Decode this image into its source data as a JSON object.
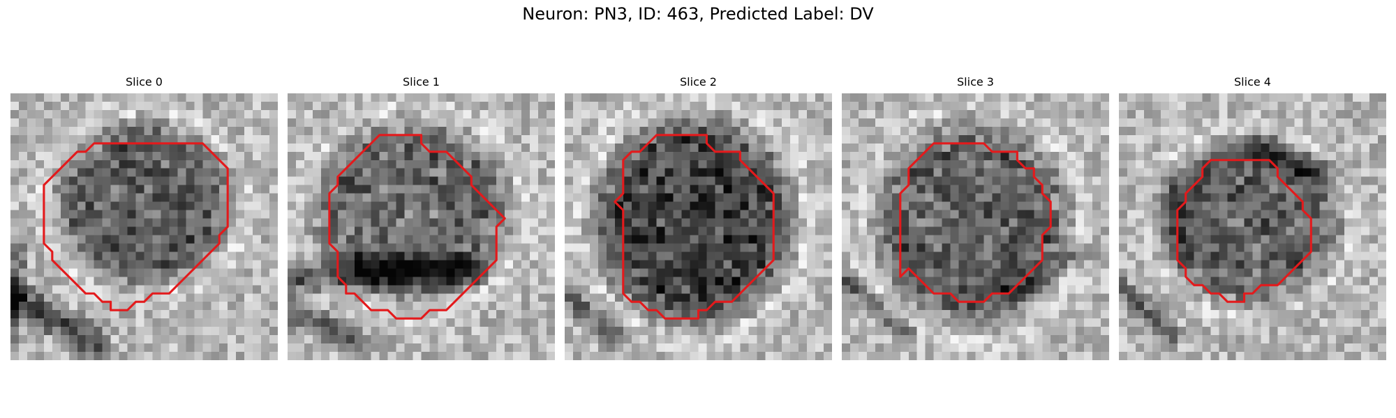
{
  "figure": {
    "title": "Neuron: PN3, ID: 463, Predicted Label: DV"
  },
  "outline_color": "#e31a1c",
  "panels": [
    {
      "title": "Slice 0",
      "seed": 11,
      "blob": {
        "cx": 16.0,
        "cy": 13.2,
        "rx": 9.4,
        "ry": 8.6,
        "dark": 0.62
      },
      "streaks": [
        {
          "x1": 0,
          "y1": 24,
          "x2": 10,
          "y2": 30,
          "w": 2.6,
          "dark": 0.85
        },
        {
          "x1": 1,
          "y1": 18,
          "x2": 0,
          "y2": 30,
          "w": 1.8,
          "dark": 0.55
        }
      ],
      "contour": [
        [
          11,
          6
        ],
        [
          23,
          6
        ],
        [
          24,
          7
        ],
        [
          25,
          8
        ],
        [
          26,
          9
        ],
        [
          26,
          10
        ],
        [
          26,
          11
        ],
        [
          26,
          12
        ],
        [
          26,
          13
        ],
        [
          26,
          14
        ],
        [
          26,
          15
        ],
        [
          26,
          16
        ],
        [
          25,
          17
        ],
        [
          25,
          18
        ],
        [
          24,
          19
        ],
        [
          23,
          20
        ],
        [
          22,
          21
        ],
        [
          21,
          22
        ],
        [
          20,
          23
        ],
        [
          19,
          24
        ],
        [
          17,
          24
        ],
        [
          16,
          25
        ],
        [
          15,
          25
        ],
        [
          14,
          26
        ],
        [
          12,
          26
        ],
        [
          12,
          25
        ],
        [
          11,
          25
        ],
        [
          10,
          24
        ],
        [
          9,
          24
        ],
        [
          8,
          23
        ],
        [
          7,
          22
        ],
        [
          6,
          21
        ],
        [
          5,
          20
        ],
        [
          5,
          19
        ],
        [
          4,
          18
        ],
        [
          4,
          17
        ],
        [
          4,
          16
        ],
        [
          4,
          15
        ],
        [
          4,
          14
        ],
        [
          4,
          13
        ],
        [
          4,
          12
        ],
        [
          4,
          11
        ],
        [
          5,
          10
        ],
        [
          6,
          9
        ],
        [
          7,
          8
        ],
        [
          8,
          7
        ],
        [
          9,
          7
        ],
        [
          10,
          6
        ]
      ]
    },
    {
      "title": "Slice 1",
      "seed": 23,
      "blob": {
        "cx": 15.0,
        "cy": 14.2,
        "rx": 10.5,
        "ry": 9.6,
        "dark": 0.55
      },
      "streaks": [
        {
          "x1": 1,
          "y1": 22,
          "x2": 22,
          "y2": 21,
          "w": 2.8,
          "dark": 0.8
        },
        {
          "x1": 0,
          "y1": 26,
          "x2": 8,
          "y2": 30,
          "w": 2.2,
          "dark": 0.7
        }
      ],
      "contour": [
        [
          11,
          5
        ],
        [
          15,
          5
        ],
        [
          16,
          5
        ],
        [
          16,
          6
        ],
        [
          17,
          7
        ],
        [
          19,
          7
        ],
        [
          20,
          8
        ],
        [
          21,
          9
        ],
        [
          22,
          10
        ],
        [
          22,
          11
        ],
        [
          23,
          12
        ],
        [
          24,
          13
        ],
        [
          25,
          14
        ],
        [
          26,
          15
        ],
        [
          25,
          16
        ],
        [
          25,
          17
        ],
        [
          25,
          18
        ],
        [
          25,
          19
        ],
        [
          25,
          20
        ],
        [
          24,
          21
        ],
        [
          23,
          22
        ],
        [
          22,
          23
        ],
        [
          21,
          24
        ],
        [
          20,
          25
        ],
        [
          19,
          26
        ],
        [
          18,
          26
        ],
        [
          17,
          26
        ],
        [
          16,
          27
        ],
        [
          13,
          27
        ],
        [
          12,
          26
        ],
        [
          10,
          26
        ],
        [
          9,
          25
        ],
        [
          8,
          24
        ],
        [
          7,
          24
        ],
        [
          7,
          23
        ],
        [
          6,
          22
        ],
        [
          6,
          21
        ],
        [
          6,
          20
        ],
        [
          6,
          19
        ],
        [
          5,
          18
        ],
        [
          5,
          17
        ],
        [
          5,
          16
        ],
        [
          5,
          15
        ],
        [
          5,
          14
        ],
        [
          5,
          13
        ],
        [
          5,
          12
        ],
        [
          6,
          11
        ],
        [
          6,
          10
        ],
        [
          7,
          9
        ],
        [
          8,
          8
        ],
        [
          9,
          7
        ],
        [
          10,
          6
        ]
      ]
    },
    {
      "title": "Slice 2",
      "seed": 37,
      "blob": {
        "cx": 15.5,
        "cy": 15.2,
        "rx": 10.6,
        "ry": 11.0,
        "dark": 0.82
      },
      "streaks": [
        {
          "x1": 0,
          "y1": 24,
          "x2": 6,
          "y2": 29,
          "w": 2.0,
          "dark": 0.6
        }
      ],
      "contour": [
        [
          11,
          5
        ],
        [
          17,
          5
        ],
        [
          17,
          6
        ],
        [
          18,
          7
        ],
        [
          21,
          7
        ],
        [
          21,
          8
        ],
        [
          22,
          9
        ],
        [
          23,
          10
        ],
        [
          24,
          11
        ],
        [
          25,
          12
        ],
        [
          25,
          13
        ],
        [
          25,
          14
        ],
        [
          25,
          15
        ],
        [
          25,
          16
        ],
        [
          25,
          17
        ],
        [
          25,
          18
        ],
        [
          25,
          19
        ],
        [
          25,
          20
        ],
        [
          24,
          21
        ],
        [
          23,
          22
        ],
        [
          22,
          23
        ],
        [
          21,
          24
        ],
        [
          20,
          25
        ],
        [
          19,
          25
        ],
        [
          18,
          25
        ],
        [
          17,
          26
        ],
        [
          16,
          26
        ],
        [
          16,
          27
        ],
        [
          12,
          27
        ],
        [
          11,
          26
        ],
        [
          10,
          26
        ],
        [
          9,
          25
        ],
        [
          8,
          25
        ],
        [
          7,
          24
        ],
        [
          7,
          23
        ],
        [
          7,
          22
        ],
        [
          7,
          21
        ],
        [
          7,
          20
        ],
        [
          7,
          19
        ],
        [
          7,
          18
        ],
        [
          7,
          17
        ],
        [
          7,
          16
        ],
        [
          7,
          15
        ],
        [
          7,
          14
        ],
        [
          6,
          13
        ],
        [
          7,
          12
        ],
        [
          7,
          11
        ],
        [
          7,
          10
        ],
        [
          7,
          9
        ],
        [
          7,
          8
        ],
        [
          8,
          7
        ],
        [
          9,
          7
        ],
        [
          10,
          6
        ]
      ]
    },
    {
      "title": "Slice 3",
      "seed": 53,
      "blob": {
        "cx": 15.5,
        "cy": 15.6,
        "rx": 10.2,
        "ry": 10.8,
        "dark": 0.62
      },
      "streaks": [
        {
          "x1": 0,
          "y1": 22,
          "x2": 8,
          "y2": 29,
          "w": 1.8,
          "dark": 0.65
        },
        {
          "x1": 20,
          "y1": 24,
          "x2": 29,
          "y2": 19,
          "w": 2.0,
          "dark": 0.45
        }
      ],
      "contour": [
        [
          11,
          6
        ],
        [
          17,
          6
        ],
        [
          18,
          7
        ],
        [
          21,
          7
        ],
        [
          21,
          8
        ],
        [
          22,
          9
        ],
        [
          23,
          9
        ],
        [
          23,
          10
        ],
        [
          24,
          11
        ],
        [
          24,
          12
        ],
        [
          25,
          13
        ],
        [
          25,
          14
        ],
        [
          25,
          15
        ],
        [
          25,
          16
        ],
        [
          24,
          17
        ],
        [
          24,
          18
        ],
        [
          24,
          19
        ],
        [
          24,
          20
        ],
        [
          23,
          21
        ],
        [
          22,
          22
        ],
        [
          21,
          23
        ],
        [
          20,
          24
        ],
        [
          19,
          24
        ],
        [
          18,
          24
        ],
        [
          17,
          25
        ],
        [
          15,
          25
        ],
        [
          14,
          25
        ],
        [
          13,
          24
        ],
        [
          11,
          24
        ],
        [
          10,
          23
        ],
        [
          9,
          22
        ],
        [
          8,
          21
        ],
        [
          7,
          22
        ],
        [
          7,
          21
        ],
        [
          7,
          20
        ],
        [
          7,
          19
        ],
        [
          7,
          18
        ],
        [
          7,
          17
        ],
        [
          7,
          16
        ],
        [
          7,
          15
        ],
        [
          7,
          14
        ],
        [
          7,
          13
        ],
        [
          7,
          12
        ],
        [
          8,
          11
        ],
        [
          8,
          10
        ],
        [
          8,
          9
        ],
        [
          9,
          8
        ],
        [
          10,
          7
        ]
      ]
    },
    {
      "title": "Slice 4",
      "seed": 71,
      "blob": {
        "cx": 15.5,
        "cy": 15.5,
        "rx": 9.6,
        "ry": 8.6,
        "dark": 0.6
      },
      "streaks": [
        {
          "x1": 16,
          "y1": 6,
          "x2": 25,
          "y2": 10,
          "w": 2.2,
          "dark": 0.7
        },
        {
          "x1": 0,
          "y1": 23,
          "x2": 6,
          "y2": 29,
          "w": 1.8,
          "dark": 0.55
        },
        {
          "x1": 6,
          "y1": 9,
          "x2": 8,
          "y2": 20,
          "w": 1.6,
          "dark": 0.45
        }
      ],
      "contour": [
        [
          11,
          8
        ],
        [
          18,
          8
        ],
        [
          19,
          9
        ],
        [
          19,
          10
        ],
        [
          20,
          11
        ],
        [
          21,
          12
        ],
        [
          22,
          13
        ],
        [
          22,
          14
        ],
        [
          23,
          15
        ],
        [
          23,
          16
        ],
        [
          23,
          17
        ],
        [
          23,
          18
        ],
        [
          23,
          19
        ],
        [
          22,
          20
        ],
        [
          21,
          21
        ],
        [
          20,
          22
        ],
        [
          19,
          23
        ],
        [
          18,
          23
        ],
        [
          17,
          23
        ],
        [
          16,
          24
        ],
        [
          15,
          24
        ],
        [
          15,
          25
        ],
        [
          13,
          25
        ],
        [
          12,
          24
        ],
        [
          11,
          24
        ],
        [
          10,
          23
        ],
        [
          9,
          23
        ],
        [
          8,
          22
        ],
        [
          8,
          21
        ],
        [
          7,
          20
        ],
        [
          7,
          19
        ],
        [
          7,
          18
        ],
        [
          7,
          17
        ],
        [
          7,
          16
        ],
        [
          7,
          15
        ],
        [
          7,
          14
        ],
        [
          8,
          13
        ],
        [
          8,
          12
        ],
        [
          9,
          11
        ],
        [
          10,
          10
        ],
        [
          10,
          9
        ]
      ]
    }
  ]
}
